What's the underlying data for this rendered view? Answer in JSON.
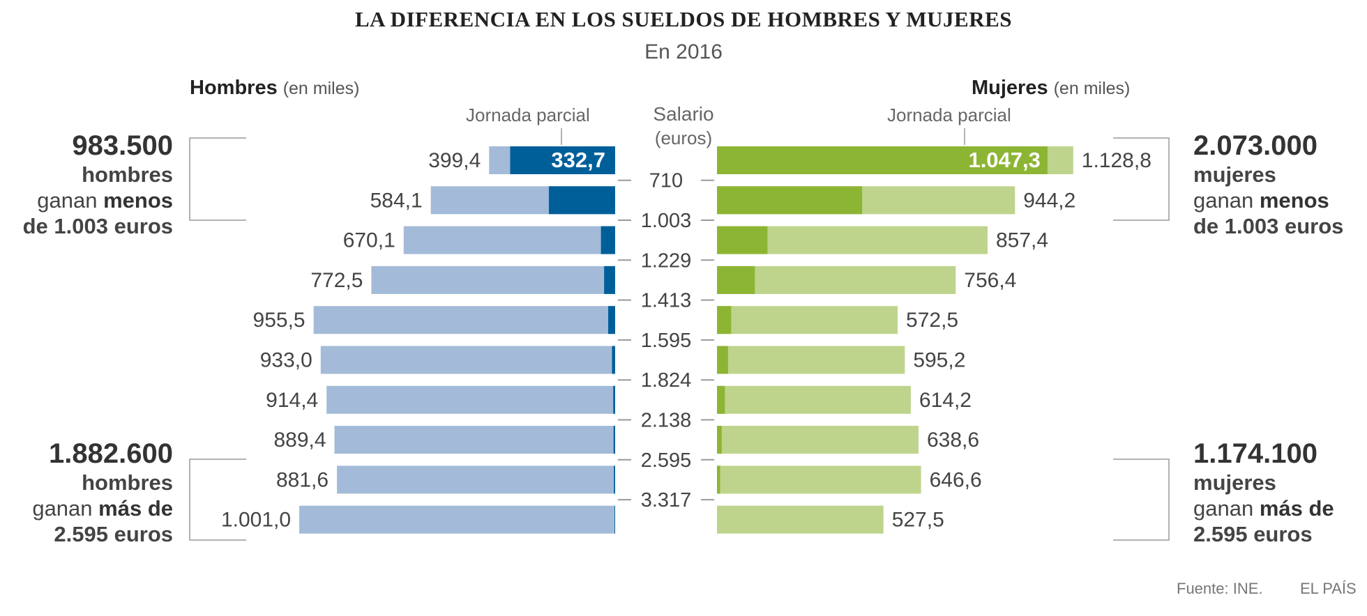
{
  "header": {
    "title": "LA DIFERENCIA EN LOS SUELDOS DE HOMBRES Y MUJERES",
    "subtitle": "En 2016"
  },
  "men_header": {
    "label": "Hombres",
    "unit": "(en miles)"
  },
  "women_header": {
    "label": "Mujeres",
    "unit": "(en miles)"
  },
  "labels": {
    "part_time_men": "Jornada parcial",
    "part_time_women": "Jornada parcial",
    "salary": "Salario",
    "salary_unit": "(euros)"
  },
  "notes": {
    "men_low": {
      "big": "983.500",
      "line1": "hombres",
      "pre": "ganan ",
      "bold": "menos",
      "line3": "de 1.003 euros"
    },
    "men_high": {
      "big": "1.882.600",
      "line1": "hombres",
      "pre": "ganan ",
      "bold": "más de",
      "line3": "2.595 euros"
    },
    "women_low": {
      "big": "2.073.000",
      "line1": "mujeres",
      "pre": "ganan ",
      "bold": "menos",
      "line3": "de 1.003 euros"
    },
    "women_high": {
      "big": "1.174.100",
      "line1": "mujeres",
      "pre": "ganan ",
      "bold": "más de",
      "line3": "2.595 euros"
    }
  },
  "footer": {
    "source": "Fuente: INE.",
    "brand": "EL PAÍS"
  },
  "colors": {
    "men_total": "#a3bbd8",
    "men_part": "#005f99",
    "women_total": "#bed48c",
    "women_part": "#8db534",
    "tick": "#999999"
  },
  "chart_data": {
    "type": "bar",
    "orientation": "horizontal-population-pyramid",
    "salary_boundaries": [
      "710",
      "1.003",
      "1.229",
      "1.413",
      "1.595",
      "1.824",
      "2.138",
      "2.595",
      "3.317"
    ],
    "series": [
      {
        "name": "Hombres",
        "total": [
          399.4,
          584.1,
          670.1,
          772.5,
          955.5,
          933.0,
          914.4,
          889.4,
          881.6,
          1001.0
        ],
        "total_labels": [
          "399,4",
          "584,1",
          "670,1",
          "772,5",
          "955,5",
          "933,0",
          "914,4",
          "889,4",
          "881,6",
          "1.001,0"
        ],
        "part_time": [
          332.7,
          210,
          45,
          35,
          22,
          10,
          6,
          5,
          4,
          2
        ],
        "part_time_labels": [
          "332,7",
          "",
          "",
          "",
          "",
          "",
          "",
          "",
          "",
          ""
        ]
      },
      {
        "name": "Mujeres",
        "total": [
          1128.8,
          944.2,
          857.4,
          756.4,
          572.5,
          595.2,
          614.2,
          638.6,
          646.6,
          527.5
        ],
        "total_labels": [
          "1.128,8",
          "944,2",
          "857,4",
          "756,4",
          "572,5",
          "595,2",
          "614,2",
          "638,6",
          "646,6",
          "527,5"
        ],
        "part_time": [
          1047.3,
          460,
          160,
          120,
          45,
          35,
          25,
          15,
          10,
          0
        ],
        "part_time_labels": [
          "1.047,3",
          "",
          "",
          "",
          "",
          "",
          "",
          "",
          "",
          ""
        ]
      }
    ],
    "xlim": [
      0,
      1150
    ]
  }
}
